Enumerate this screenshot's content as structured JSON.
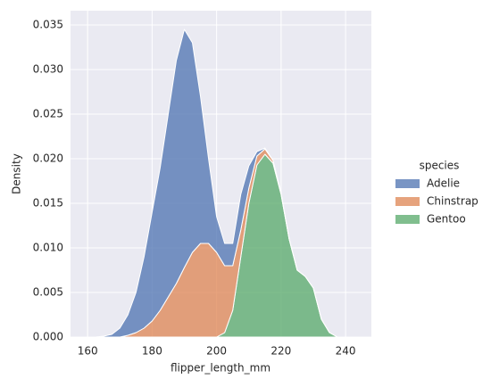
{
  "chart_data": {
    "type": "stacked-kde",
    "xlabel": "flipper_length_mm",
    "ylabel": "Density",
    "legend_title": "species",
    "legend": "right",
    "grid": true,
    "x": [
      162.5,
      165,
      167.5,
      170,
      172.5,
      175,
      177.5,
      180,
      182.5,
      185,
      187.5,
      190,
      192.5,
      195,
      197.5,
      200,
      202.5,
      205,
      207.5,
      210,
      212.5,
      215,
      217.5,
      220,
      222.5,
      225,
      227.5,
      230,
      232.5,
      235,
      237.5,
      240
    ],
    "series": [
      {
        "name": "Adelie",
        "color": "#4c72b0",
        "values": [
          0,
          0.0001,
          0.0003,
          0.001,
          0.0023,
          0.0045,
          0.008,
          0.0122,
          0.016,
          0.0205,
          0.025,
          0.0267,
          0.0235,
          0.0165,
          0.0095,
          0.004,
          0.0025,
          0.0025,
          0.004,
          0.0025,
          0.0005,
          0.0001,
          0,
          0,
          0,
          0,
          0,
          0,
          0,
          0,
          0,
          0
        ]
      },
      {
        "name": "Chinstrap",
        "color": "#dd8452",
        "values": [
          0,
          0,
          0,
          0,
          0.0002,
          0.0005,
          0.001,
          0.0018,
          0.003,
          0.0045,
          0.006,
          0.0078,
          0.0095,
          0.0105,
          0.0105,
          0.0095,
          0.0075,
          0.005,
          0.003,
          0.0017,
          0.001,
          0.0006,
          0.0003,
          0.0001,
          0,
          0,
          0,
          0,
          0,
          0,
          0,
          0
        ]
      },
      {
        "name": "Gentoo",
        "color": "#55a868",
        "values": [
          0,
          0,
          0,
          0,
          0,
          0,
          0,
          0,
          0,
          0,
          0,
          0,
          0,
          0,
          0,
          0,
          0.0005,
          0.003,
          0.009,
          0.015,
          0.0193,
          0.0205,
          0.0195,
          0.016,
          0.011,
          0.0075,
          0.0068,
          0.0055,
          0.002,
          0.0005,
          0,
          0
        ]
      }
    ],
    "xlim": [
      154.7,
      248
    ],
    "ylim": [
      0,
      0.0366
    ],
    "xticks": [
      160,
      180,
      200,
      220,
      240
    ],
    "yticks": [
      {
        "value": 0,
        "label": "0.000"
      },
      0.005,
      {
        "value": 0.01,
        "label": "0.010"
      },
      0.015,
      {
        "value": 0.02,
        "label": "0.020"
      },
      0.025,
      {
        "value": 0.03,
        "label": "0.030"
      },
      0.035
    ]
  }
}
